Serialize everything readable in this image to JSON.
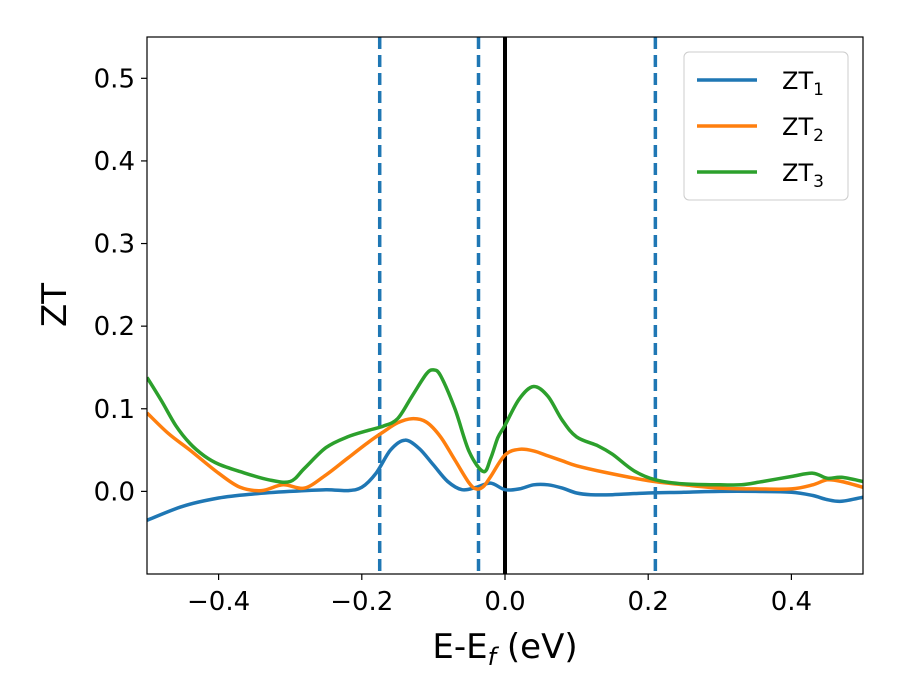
{
  "chart_data": {
    "type": "line",
    "xlabel": "E-E",
    "xlabel_sub": "f",
    "xlabel_unit": " (eV)",
    "ylabel": "ZT",
    "xlim": [
      -0.5,
      0.5
    ],
    "ylim": [
      -0.1,
      0.55
    ],
    "xticks": [
      -0.4,
      -0.2,
      0.0,
      0.2,
      0.4
    ],
    "xtick_labels": [
      "−0.4",
      "−0.2",
      "0.0",
      "0.2",
      "0.4"
    ],
    "yticks": [
      0.0,
      0.1,
      0.2,
      0.3,
      0.4,
      0.5
    ],
    "ytick_labels": [
      "0.0",
      "0.1",
      "0.2",
      "0.3",
      "0.4",
      "0.5"
    ],
    "grid": false,
    "legend_position": "top-right",
    "vertical_lines": [
      {
        "x": -0.175,
        "style": "dashed",
        "color": "#1f77b4"
      },
      {
        "x": -0.037,
        "style": "dashed",
        "color": "#1f77b4"
      },
      {
        "x": 0.0,
        "style": "solid",
        "color": "#000000"
      },
      {
        "x": 0.21,
        "style": "dashed",
        "color": "#1f77b4"
      }
    ],
    "series": [
      {
        "name": "ZT",
        "name_sub": "1",
        "color": "#1f77b4",
        "x": [
          -0.5,
          -0.45,
          -0.4,
          -0.35,
          -0.3,
          -0.25,
          -0.22,
          -0.2,
          -0.18,
          -0.16,
          -0.14,
          -0.12,
          -0.1,
          -0.08,
          -0.06,
          -0.04,
          -0.02,
          0.0,
          0.02,
          0.04,
          0.06,
          0.08,
          0.1,
          0.12,
          0.15,
          0.2,
          0.25,
          0.3,
          0.35,
          0.4,
          0.43,
          0.45,
          0.47,
          0.5
        ],
        "y": [
          -0.035,
          -0.018,
          -0.008,
          -0.003,
          0.0,
          0.002,
          0.001,
          0.005,
          0.022,
          0.05,
          0.062,
          0.052,
          0.032,
          0.012,
          0.002,
          0.005,
          0.01,
          0.002,
          0.003,
          0.008,
          0.008,
          0.004,
          -0.002,
          -0.004,
          -0.004,
          -0.002,
          -0.001,
          0.0,
          0.0,
          -0.001,
          -0.005,
          -0.01,
          -0.012,
          -0.007
        ]
      },
      {
        "name": "ZT",
        "name_sub": "2",
        "color": "#ff7f0e",
        "x": [
          -0.5,
          -0.47,
          -0.44,
          -0.4,
          -0.37,
          -0.34,
          -0.31,
          -0.28,
          -0.25,
          -0.22,
          -0.19,
          -0.17,
          -0.15,
          -0.13,
          -0.11,
          -0.09,
          -0.07,
          -0.05,
          -0.04,
          -0.03,
          -0.02,
          0.0,
          0.02,
          0.04,
          0.06,
          0.08,
          0.1,
          0.14,
          0.2,
          0.25,
          0.3,
          0.35,
          0.4,
          0.43,
          0.45,
          0.47,
          0.5
        ],
        "y": [
          0.095,
          0.07,
          0.05,
          0.022,
          0.005,
          0.001,
          0.008,
          0.004,
          0.02,
          0.04,
          0.06,
          0.072,
          0.083,
          0.088,
          0.084,
          0.066,
          0.038,
          0.01,
          0.003,
          0.006,
          0.018,
          0.044,
          0.051,
          0.049,
          0.043,
          0.037,
          0.031,
          0.023,
          0.013,
          0.008,
          0.004,
          0.003,
          0.003,
          0.008,
          0.014,
          0.012,
          0.005
        ]
      },
      {
        "name": "ZT",
        "name_sub": "3",
        "color": "#2ca02c",
        "x": [
          -0.5,
          -0.48,
          -0.46,
          -0.44,
          -0.42,
          -0.4,
          -0.37,
          -0.33,
          -0.3,
          -0.28,
          -0.25,
          -0.22,
          -0.19,
          -0.17,
          -0.15,
          -0.13,
          -0.11,
          -0.1,
          -0.09,
          -0.07,
          -0.05,
          -0.03,
          -0.02,
          -0.01,
          0.0,
          0.02,
          0.04,
          0.06,
          0.08,
          0.1,
          0.13,
          0.15,
          0.18,
          0.21,
          0.25,
          0.3,
          0.33,
          0.36,
          0.4,
          0.43,
          0.45,
          0.47,
          0.5
        ],
        "y": [
          0.138,
          0.11,
          0.08,
          0.058,
          0.043,
          0.033,
          0.024,
          0.014,
          0.012,
          0.028,
          0.053,
          0.066,
          0.074,
          0.079,
          0.088,
          0.115,
          0.142,
          0.147,
          0.14,
          0.1,
          0.048,
          0.024,
          0.04,
          0.065,
          0.08,
          0.112,
          0.127,
          0.115,
          0.086,
          0.066,
          0.055,
          0.045,
          0.025,
          0.014,
          0.009,
          0.008,
          0.008,
          0.012,
          0.018,
          0.022,
          0.016,
          0.017,
          0.012
        ]
      }
    ]
  }
}
